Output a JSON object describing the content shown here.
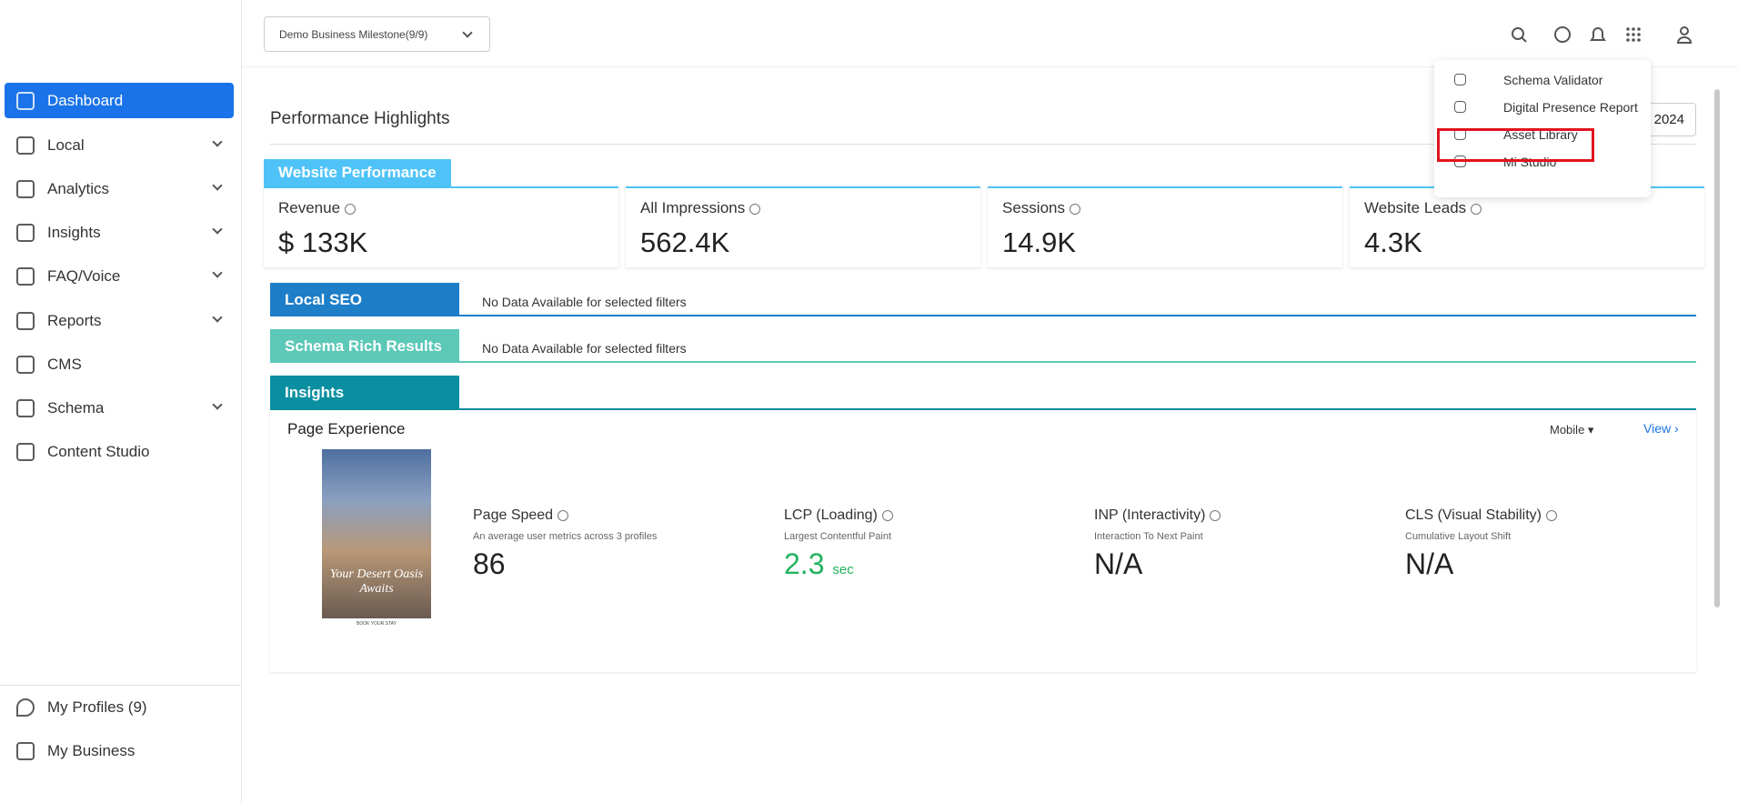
{
  "header": {
    "business_select": "Demo Business Milestone(9/9)"
  },
  "sidebar": {
    "items": [
      "Dashboard",
      "Local",
      "Analytics",
      "Insights",
      "FAQ/Voice",
      "Reports",
      "CMS",
      "Schema",
      "Content Studio"
    ],
    "footer": [
      "My Profiles (9)",
      "My Business"
    ]
  },
  "menu": {
    "items": [
      "Schema Validator",
      "Digital Presence Report",
      "Asset Library",
      "Mi Studio"
    ]
  },
  "main": {
    "title": "Performance Highlights",
    "date": "2024",
    "website_performance": {
      "tab": "Website Performance",
      "cards": [
        {
          "label": "Revenue",
          "value": "$ 133K"
        },
        {
          "label": "All Impressions",
          "value": "562.4K"
        },
        {
          "label": "Sessions",
          "value": "14.9K"
        },
        {
          "label": "Website Leads",
          "value": "4.3K"
        }
      ]
    },
    "local_seo": {
      "tab": "Local SEO",
      "message": "No Data Available for selected filters"
    },
    "schema": {
      "tab": "Schema Rich Results",
      "message": "No Data Available for selected filters"
    },
    "insights": {
      "tab": "Insights",
      "panel_title": "Page Experience",
      "device": "Mobile",
      "view": "View",
      "thumbnail": {
        "headline": "Your Desert Oasis Awaits",
        "caption": "BOOK YOUR STAY"
      },
      "metrics": [
        {
          "title": "Page Speed",
          "subtitle": "An average user metrics across 3 profiles",
          "value": "86"
        },
        {
          "title": "LCP (Loading)",
          "subtitle": "Largest Contentful Paint",
          "value": "2.3",
          "unit": "sec"
        },
        {
          "title": "INP (Interactivity)",
          "subtitle": "Interaction To Next Paint",
          "value": "N/A"
        },
        {
          "title": "CLS (Visual Stability)",
          "subtitle": "Cumulative Layout Shift",
          "value": "N/A"
        }
      ]
    }
  }
}
